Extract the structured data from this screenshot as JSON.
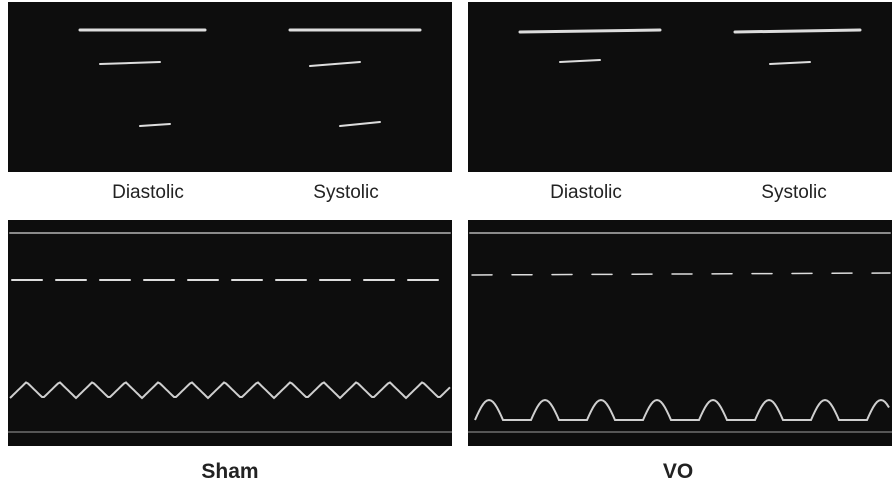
{
  "panels": [
    {
      "labels": [
        "Diastolic",
        "Systolic"
      ]
    },
    {
      "labels": [
        "Diastolic",
        "Systolic"
      ]
    }
  ],
  "groups": [
    "Sham",
    "VO"
  ]
}
